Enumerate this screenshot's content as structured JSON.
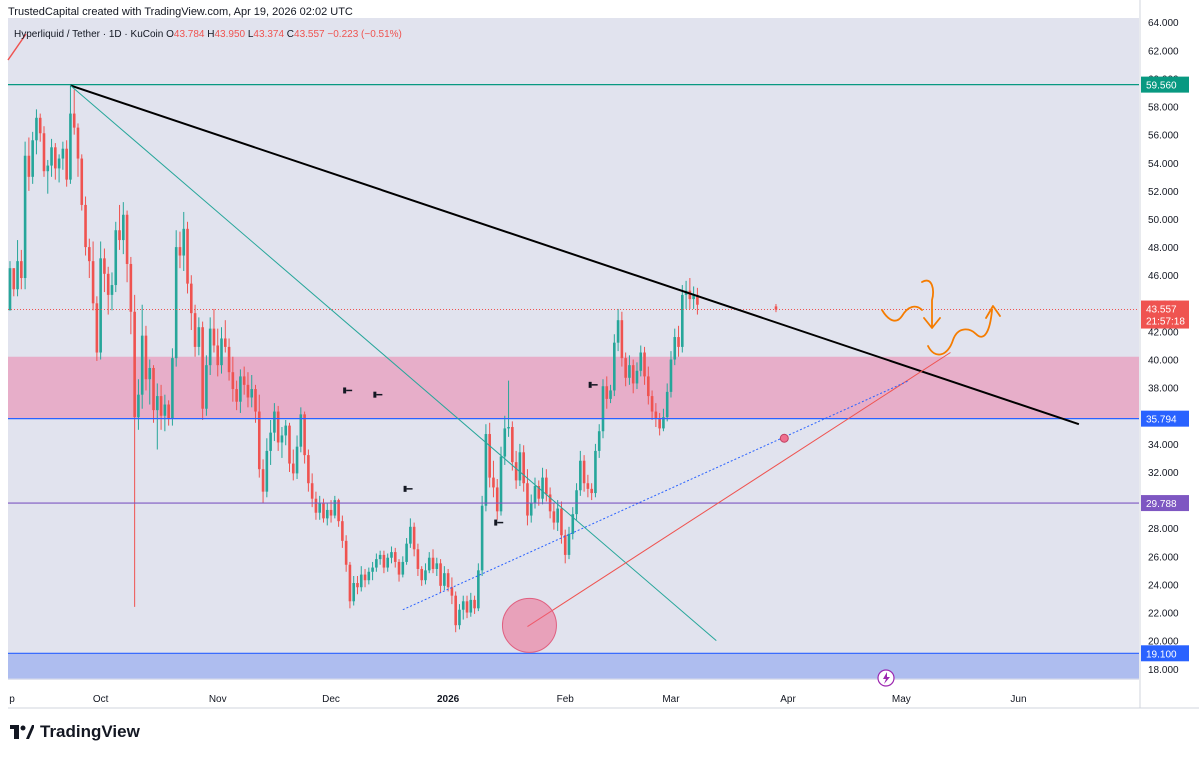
{
  "header": {
    "text": "TrustedCapital created with TradingView.com, Apr 19, 2026 02:02 UTC"
  },
  "legend": {
    "symbol": "Hyperliquid / Tether · 1D · KuCoin",
    "o_label": "O",
    "o": "43.784",
    "h_label": "H",
    "h": "43.950",
    "l_label": "L",
    "l": "43.374",
    "c_label": "C",
    "c": "43.557",
    "change": "−0.223 (−0.51%)"
  },
  "branding": {
    "text": "TradingView"
  },
  "colors": {
    "bull": "#26a69a",
    "bear": "#ef5350",
    "background": "#e1e3ee",
    "resistance_zone": "#e8a5c2",
    "support_zone": "#a9b8ee",
    "h_line_blue": "#2962ff",
    "h_line_purple": "#7e57c2",
    "h_line_green": "#089981",
    "orange": "#f57c00",
    "black": "#000000"
  },
  "chart_data": {
    "type": "candlestick",
    "title": "Hyperliquid / Tether · 1D · KuCoin",
    "y_ticks": [
      "18.000",
      "20.000",
      "22.000",
      "24.000",
      "26.000",
      "28.000",
      "30.000",
      "32.000",
      "34.000",
      "36.000",
      "38.000",
      "40.000",
      "42.000",
      "44.000",
      "46.000",
      "48.000",
      "50.000",
      "52.000",
      "54.000",
      "56.000",
      "58.000",
      "60.000",
      "62.000",
      "64.000"
    ],
    "ylim": [
      17.2,
      64.3
    ],
    "x_ticks": [
      {
        "label": "p",
        "day": 0
      },
      {
        "label": "Oct",
        "day": 24
      },
      {
        "label": "Nov",
        "day": 55
      },
      {
        "label": "Dec",
        "day": 85
      },
      {
        "label": "2026",
        "day": 116
      },
      {
        "label": "Feb",
        "day": 147
      },
      {
        "label": "Mar",
        "day": 175
      },
      {
        "label": "Apr",
        "day": 206
      },
      {
        "label": "May",
        "day": 236
      },
      {
        "label": "Jun",
        "day": 267
      }
    ],
    "horizontal_levels": [
      {
        "value": 59.56,
        "label": "59.560",
        "color": "#089981"
      },
      {
        "value": 35.794,
        "label": "35.794",
        "color": "#2962ff"
      },
      {
        "value": 29.788,
        "label": "29.788",
        "color": "#7e57c2"
      },
      {
        "value": 19.1,
        "label": "19.100",
        "color": "#2962ff"
      }
    ],
    "last_price": {
      "value": 43.557,
      "label": "43.557",
      "countdown": "21:57:18"
    },
    "zones": [
      {
        "name": "resistance",
        "from": 35.794,
        "to": 40.2
      },
      {
        "name": "support",
        "from": 17.3,
        "to": 19.1
      }
    ],
    "trendlines": [
      {
        "name": "main-downtrend",
        "from": [
          16,
          59.5
        ],
        "to": [
          283,
          35.4
        ],
        "color": "#000000"
      },
      {
        "name": "teal-downtrend",
        "from": [
          16,
          59.5
        ],
        "to": [
          187,
          20.0
        ],
        "color": "#26a69a"
      },
      {
        "name": "red-uptrend",
        "from": [
          137,
          21.0
        ],
        "to": [
          249,
          40.5
        ],
        "color": "#ef5350"
      },
      {
        "name": "blue-dotted-support",
        "from": [
          104,
          22.2
        ],
        "to": [
          238,
          38.5
        ],
        "color": "#2962ff"
      }
    ],
    "markers": [
      {
        "name": "circle-low",
        "day": 137,
        "value": 21.3
      },
      {
        "name": "dot-apr",
        "day": 205,
        "value": 34.4
      }
    ],
    "candles": [
      [
        43.5,
        47,
        43.5,
        46.5
      ],
      [
        46.5,
        46.5,
        44.5,
        45
      ],
      [
        45,
        48.5,
        44.5,
        47
      ],
      [
        47,
        47.8,
        45,
        45.8
      ],
      [
        45.8,
        55.5,
        45,
        54.5
      ],
      [
        54.5,
        55.8,
        52,
        53
      ],
      [
        53,
        56.2,
        52.5,
        55.6
      ],
      [
        55.6,
        57.8,
        54.6,
        57.2
      ],
      [
        57.2,
        57.5,
        55.5,
        56.1
      ],
      [
        56.1,
        56.6,
        53,
        53.4
      ],
      [
        53.4,
        54.2,
        51.8,
        53.8
      ],
      [
        53.8,
        55.7,
        53,
        55.1
      ],
      [
        55.1,
        55.4,
        52.8,
        53.6
      ],
      [
        53.6,
        54.6,
        52.6,
        54.3
      ],
      [
        54.3,
        55.5,
        53.5,
        55
      ],
      [
        55,
        55.6,
        52.3,
        52.8
      ],
      [
        52.8,
        59.5,
        52.5,
        57.5
      ],
      [
        57.5,
        59.2,
        56,
        56.5
      ],
      [
        56.5,
        56.8,
        53,
        54.3
      ],
      [
        54.3,
        54.6,
        50.6,
        51
      ],
      [
        51,
        51.6,
        47.4,
        48
      ],
      [
        48,
        48.6,
        45.8,
        47
      ],
      [
        47,
        48.4,
        43.5,
        44
      ],
      [
        44,
        44.5,
        39.9,
        40.5
      ],
      [
        40.5,
        48.4,
        40,
        47.2
      ],
      [
        47.2,
        47.9,
        44.8,
        46.1
      ],
      [
        46.1,
        46.6,
        43.2,
        44.6
      ],
      [
        44.6,
        46.2,
        43.5,
        45.3
      ],
      [
        45.3,
        49.8,
        44.8,
        49.2
      ],
      [
        49.2,
        51,
        47.8,
        48.5
      ],
      [
        48.5,
        51.2,
        47.5,
        50.3
      ],
      [
        50.3,
        50.6,
        45.5,
        46.8
      ],
      [
        46.8,
        47.3,
        41.8,
        43.4
      ],
      [
        43.4,
        44.6,
        22.4,
        35.9
      ],
      [
        35.9,
        38.6,
        35,
        37.5
      ],
      [
        37.5,
        43.9,
        36.5,
        41.7
      ],
      [
        41.7,
        42.4,
        37.8,
        38.6
      ],
      [
        38.6,
        40,
        36.8,
        39.4
      ],
      [
        39.4,
        39.6,
        35.5,
        36.4
      ],
      [
        36.4,
        38.3,
        33.6,
        37.4
      ],
      [
        37.4,
        38.2,
        35,
        36
      ],
      [
        36,
        37.5,
        34.9,
        36.8
      ],
      [
        36.8,
        37.1,
        35.3,
        35.8
      ],
      [
        35.8,
        40.8,
        35.3,
        40.1
      ],
      [
        40.1,
        49.2,
        39.5,
        48
      ],
      [
        48,
        49.1,
        46.5,
        47.4
      ],
      [
        47.4,
        50.5,
        46.3,
        49.3
      ],
      [
        49.3,
        49.8,
        44.7,
        45.4
      ],
      [
        45.4,
        46,
        42.1,
        43.3
      ],
      [
        43.3,
        43.9,
        40.2,
        40.9
      ],
      [
        40.9,
        43,
        40.3,
        42.3
      ],
      [
        42.3,
        42.7,
        35.7,
        36.5
      ],
      [
        36.5,
        40.3,
        36,
        39.6
      ],
      [
        39.6,
        43,
        38.9,
        42.2
      ],
      [
        42.2,
        43.6,
        40.5,
        41
      ],
      [
        41,
        42.2,
        38.8,
        39.6
      ],
      [
        39.6,
        42.3,
        39,
        41.5
      ],
      [
        41.5,
        42.8,
        40.5,
        40.9
      ],
      [
        40.9,
        41.5,
        38.5,
        39.1
      ],
      [
        39.1,
        40.2,
        37,
        37.9
      ],
      [
        37.9,
        38.5,
        36.4,
        37
      ],
      [
        37,
        39.3,
        36.2,
        38.8
      ],
      [
        38.8,
        39.5,
        37.5,
        38.2
      ],
      [
        38.2,
        39.1,
        36.6,
        37.3
      ],
      [
        37.3,
        38.9,
        36.6,
        37.9
      ],
      [
        37.9,
        38.2,
        35.5,
        36.3
      ],
      [
        36.3,
        37.5,
        31.6,
        32.2
      ],
      [
        32.2,
        32.9,
        29.8,
        30.6
      ],
      [
        30.6,
        34.4,
        30.2,
        33.5
      ],
      [
        33.5,
        35.7,
        32.5,
        34.8
      ],
      [
        34.8,
        36.9,
        34.2,
        36.3
      ],
      [
        36.3,
        36.7,
        33.5,
        34.1
      ],
      [
        34.1,
        35.2,
        33,
        34.6
      ],
      [
        34.6,
        35.7,
        33.9,
        35.3
      ],
      [
        35.3,
        35.5,
        32,
        32.6
      ],
      [
        32.6,
        33.6,
        31.4,
        31.9
      ],
      [
        31.9,
        34.6,
        31.5,
        33.8
      ],
      [
        33.8,
        36.6,
        33.4,
        36.1
      ],
      [
        36.1,
        36.3,
        32.6,
        33.2
      ],
      [
        33.2,
        33.6,
        30.6,
        31.2
      ],
      [
        31.2,
        31.9,
        29.5,
        30.1
      ],
      [
        30.1,
        30.6,
        28.6,
        29.1
      ],
      [
        29.1,
        30.3,
        28.6,
        29.8
      ],
      [
        29.8,
        30.1,
        28.4,
        28.7
      ],
      [
        28.7,
        29.8,
        28.2,
        29.3
      ],
      [
        29.3,
        30,
        28.4,
        28.9
      ],
      [
        28.9,
        30.3,
        28.7,
        30
      ],
      [
        30,
        30.1,
        28.1,
        28.5
      ],
      [
        28.5,
        28.9,
        26.6,
        27.1
      ],
      [
        27.1,
        27.5,
        24.9,
        25.4
      ],
      [
        25.4,
        25.6,
        22.3,
        22.8
      ],
      [
        22.8,
        24.6,
        22.5,
        24.1
      ],
      [
        24.1,
        24.6,
        23.3,
        23.8
      ],
      [
        23.8,
        25.3,
        23.5,
        24.7
      ],
      [
        24.7,
        25.1,
        23.8,
        24.3
      ],
      [
        24.3,
        25.2,
        24,
        24.9
      ],
      [
        24.9,
        25.6,
        24.3,
        25.2
      ],
      [
        25.2,
        26.2,
        24.9,
        25.8
      ],
      [
        25.8,
        26.4,
        25.4,
        26.1
      ],
      [
        26.1,
        26.4,
        24.8,
        25.2
      ],
      [
        25.2,
        26.2,
        24.9,
        25.9
      ],
      [
        25.9,
        26.7,
        25.5,
        26.3
      ],
      [
        26.3,
        26.6,
        25.2,
        25.6
      ],
      [
        25.6,
        25.8,
        24.2,
        24.7
      ],
      [
        24.7,
        26,
        24.5,
        25.6
      ],
      [
        25.6,
        27.3,
        25.4,
        26.9
      ],
      [
        26.9,
        28.7,
        26.6,
        28.1
      ],
      [
        28.1,
        28.4,
        26,
        26.5
      ],
      [
        26.5,
        26.9,
        24.6,
        25.1
      ],
      [
        25.1,
        25.3,
        23.9,
        24.3
      ],
      [
        24.3,
        25.5,
        24,
        25
      ],
      [
        25,
        26.3,
        24.8,
        25.9
      ],
      [
        25.9,
        26.5,
        24.8,
        25.1
      ],
      [
        25.1,
        25.9,
        24.6,
        25.5
      ],
      [
        25.5,
        25.8,
        23.4,
        23.9
      ],
      [
        23.9,
        25.3,
        23.6,
        24.8
      ],
      [
        24.8,
        25.1,
        23.5,
        23.8
      ],
      [
        23.8,
        24.5,
        22.6,
        23.2
      ],
      [
        23.2,
        23.5,
        20.6,
        21.1
      ],
      [
        21.1,
        22.6,
        20.8,
        22.2
      ],
      [
        22.2,
        23.2,
        21.5,
        22.8
      ],
      [
        22.8,
        23.2,
        21.6,
        22
      ],
      [
        22,
        23.4,
        21.7,
        22.9
      ],
      [
        22.9,
        23.2,
        21.9,
        22.3
      ],
      [
        22.3,
        25.5,
        22.1,
        25
      ],
      [
        25,
        30.3,
        24.6,
        29.6
      ],
      [
        29.6,
        35.4,
        29.2,
        34.7
      ],
      [
        34.7,
        35.5,
        30.9,
        31.6
      ],
      [
        31.6,
        32.8,
        30.2,
        30.9
      ],
      [
        30.9,
        31.5,
        28.6,
        29.2
      ],
      [
        29.2,
        33.8,
        28.9,
        33.1
      ],
      [
        33.1,
        36,
        32.5,
        35.1
      ],
      [
        35.1,
        38.5,
        34.5,
        35.2
      ],
      [
        35.2,
        35.6,
        32.1,
        32.7
      ],
      [
        32.7,
        33.5,
        30.8,
        31.4
      ],
      [
        31.4,
        34,
        31,
        33.4
      ],
      [
        33.4,
        33.9,
        30.6,
        31.2
      ],
      [
        31.2,
        32.2,
        28.2,
        28.9
      ],
      [
        28.9,
        30.4,
        28.4,
        29.8
      ],
      [
        29.8,
        31.6,
        29.4,
        31
      ],
      [
        31,
        31.4,
        29.6,
        30.1
      ],
      [
        30.1,
        32.3,
        29.7,
        31.6
      ],
      [
        31.6,
        32.2,
        29.9,
        30.4
      ],
      [
        30.4,
        30.9,
        28.7,
        29.2
      ],
      [
        29.2,
        29.8,
        27.9,
        28.4
      ],
      [
        28.4,
        30,
        27.8,
        29.4
      ],
      [
        29.4,
        29.9,
        26.9,
        27.5
      ],
      [
        27.5,
        27.9,
        25.5,
        26.1
      ],
      [
        26.1,
        28.1,
        25.8,
        27.6
      ],
      [
        27.6,
        29.5,
        27.2,
        29
      ],
      [
        29,
        31.2,
        28.6,
        30.7
      ],
      [
        30.7,
        33.5,
        30.3,
        32.8
      ],
      [
        32.8,
        33.2,
        30.6,
        31.2
      ],
      [
        31.2,
        31.8,
        30.2,
        30.8
      ],
      [
        30.8,
        31.2,
        30,
        30.5
      ],
      [
        30.5,
        34,
        30.2,
        33.5
      ],
      [
        33.5,
        35.4,
        33,
        34.9
      ],
      [
        34.9,
        38.6,
        34.4,
        38.1
      ],
      [
        38.1,
        38.8,
        36.5,
        37.2
      ],
      [
        37.2,
        38.2,
        36.9,
        37.8
      ],
      [
        37.8,
        41.8,
        37.4,
        41.2
      ],
      [
        41.2,
        43.6,
        40.6,
        42.8
      ],
      [
        42.8,
        43.4,
        39.5,
        40.1
      ],
      [
        40.1,
        40.5,
        38.1,
        38.7
      ],
      [
        38.7,
        40.3,
        38.2,
        39.6
      ],
      [
        39.6,
        40,
        37.6,
        38.3
      ],
      [
        38.3,
        39.8,
        37.9,
        39.2
      ],
      [
        39.2,
        41,
        38.8,
        40.5
      ],
      [
        40.5,
        40.9,
        38.2,
        38.8
      ],
      [
        38.8,
        39.5,
        36.8,
        37.4
      ],
      [
        37.4,
        37.8,
        35.7,
        36.3
      ],
      [
        36.3,
        36.9,
        35.2,
        35.8
      ],
      [
        35.8,
        36.2,
        34.6,
        35.1
      ],
      [
        35.1,
        36.5,
        34.9,
        35.9
      ],
      [
        35.9,
        38.3,
        35.6,
        37.7
      ],
      [
        37.7,
        40.6,
        37.3,
        40
      ],
      [
        40,
        42.2,
        39.6,
        41.6
      ],
      [
        41.6,
        42.4,
        40.2,
        40.9
      ],
      [
        40.9,
        45.3,
        40.5,
        44.6
      ],
      [
        44.6,
        45.6,
        43.6,
        44.9
      ],
      [
        44.9,
        45.8,
        43.6,
        44.3
      ],
      [
        44.3,
        45.2,
        43.6,
        44.6
      ],
      [
        44.6,
        45.1,
        43.2,
        43.9
      ],
      [
        43.78,
        43.95,
        43.37,
        43.557
      ]
    ],
    "last_day": 202.8,
    "annotations": [
      "orange projection path: sideways, drop toward 40, rebound to 44"
    ]
  }
}
